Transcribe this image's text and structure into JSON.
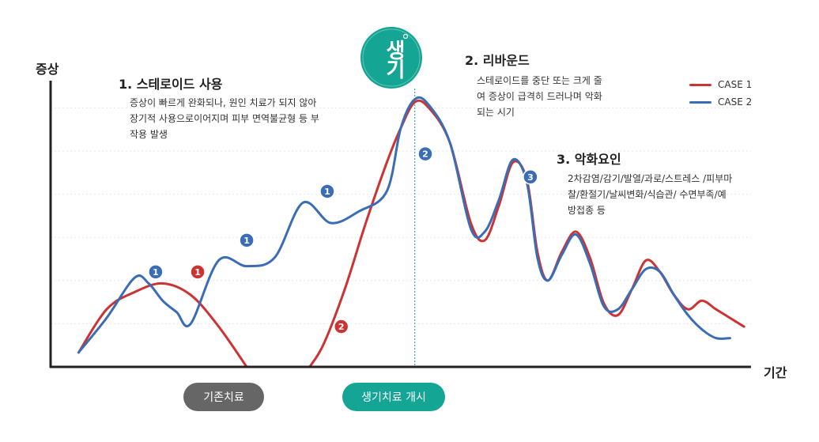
{
  "axes": {
    "y_label": "증상",
    "x_label": "기간"
  },
  "logo": {
    "text": "생기"
  },
  "annotations": [
    {
      "title": "1. 스테로이드 사용",
      "body": "증상이 빠르게 완화되나, 원인 치료가 되지 않아 장기적 사용으로이어지며 피부 면역불균형 등 부작용 발생"
    },
    {
      "title": "2. 리바운드",
      "body": "스테로이드를 중단 또는 크게 줄여 증상이 급격히 드러나며 악화되는 시기"
    },
    {
      "title": "3. 악화요인",
      "body": "2차감염/감기/발열/과로/스트레스 /피부마찰/환절기/날씨변화/식습관/ 수면부족/예방접종 등"
    }
  ],
  "phases": [
    {
      "label": "기존치료",
      "color": "#666666"
    },
    {
      "label": "생기치료 개시",
      "color": "#14a594"
    }
  ],
  "chart_data": {
    "type": "line",
    "title": "",
    "xlabel": "기간",
    "ylabel": "증상",
    "xlim": [
      0,
      100
    ],
    "ylim": [
      0,
      100
    ],
    "legend_position": "top-right",
    "series": [
      {
        "name": "CASE 1",
        "color": "#cc3333",
        "x": [
          4,
          8,
          12,
          16,
          20,
          24,
          28,
          32,
          36,
          37,
          39,
          42,
          45,
          48,
          50,
          52,
          54,
          57,
          60,
          62,
          64,
          66,
          68,
          69.5,
          71,
          73,
          75,
          77,
          79,
          81,
          83,
          85,
          87,
          89,
          91,
          93,
          95,
          97,
          99
        ],
        "y": [
          5,
          20,
          26,
          29,
          25,
          14,
          0,
          null,
          null,
          0,
          8,
          27,
          50,
          71,
          83,
          92,
          90,
          78,
          50,
          44,
          56,
          71,
          65,
          40,
          30,
          40,
          47,
          38,
          22,
          18,
          27,
          37,
          33,
          25,
          20,
          23,
          20,
          17,
          14
        ]
      },
      {
        "name": "CASE 2",
        "color": "#3a6db5",
        "x": [
          4,
          8,
          12,
          14,
          16,
          18,
          20,
          24,
          28,
          32,
          36,
          40,
          44,
          48,
          50,
          52,
          54,
          57,
          60,
          62,
          64,
          66,
          68,
          69.5,
          71,
          73,
          75,
          77,
          79,
          81,
          83,
          85,
          87,
          89,
          91,
          93,
          95,
          97
        ],
        "y": [
          5,
          17,
          31,
          29,
          23,
          19,
          15,
          37,
          35,
          38,
          57,
          50,
          54,
          61,
          83,
          93,
          91,
          78,
          48,
          47,
          58,
          72,
          64,
          38,
          30,
          39,
          46,
          36,
          21,
          20,
          27,
          34,
          33,
          25,
          18,
          13,
          10,
          10
        ]
      }
    ],
    "markers": [
      {
        "label": "1",
        "series": "CASE 2",
        "x": 15,
        "y": 33
      },
      {
        "label": "1",
        "series": "CASE 1",
        "x": 21,
        "y": 33
      },
      {
        "label": "1",
        "series": "CASE 2",
        "x": 28,
        "y": 44
      },
      {
        "label": "1",
        "series": "CASE 2",
        "x": 39.5,
        "y": 61
      },
      {
        "label": "2",
        "series": "CASE 1",
        "x": 41.5,
        "y": 14
      },
      {
        "label": "2",
        "series": "CASE 2",
        "x": 53.5,
        "y": 74
      },
      {
        "label": "3",
        "series": "CASE 2",
        "x": 68.5,
        "y": 66
      }
    ],
    "reference_line": {
      "x": 52
    }
  }
}
